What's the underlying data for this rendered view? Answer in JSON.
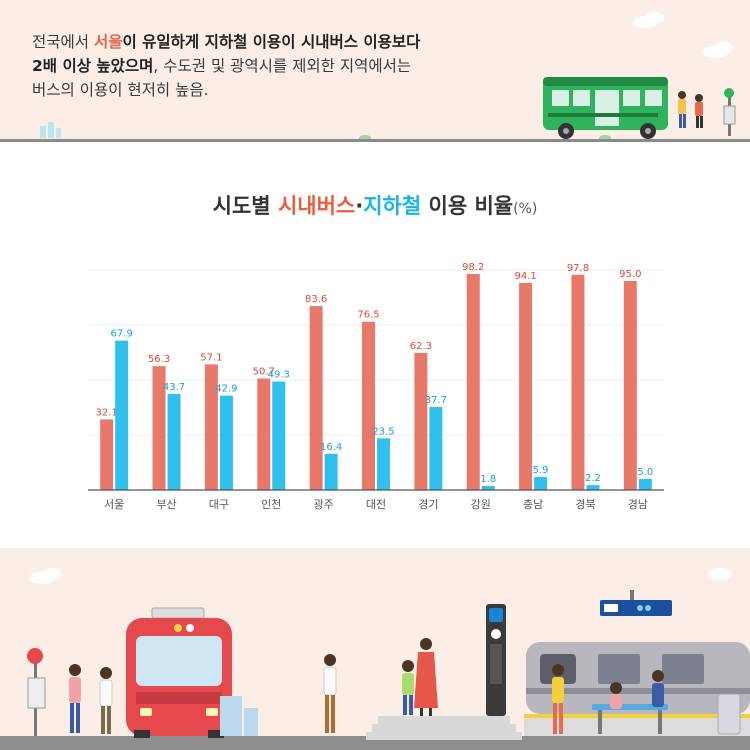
{
  "headline": {
    "line1_pre": "전국에서 ",
    "line1_city": "서울",
    "line1_post": "이 유일하게 지하철 이용이 시내버스 이용보다",
    "line2_em": "2배 이상 높았으며",
    "line2_post": ", 수도권 및 광역시를 제외한 지역에서는",
    "line3": "버스의 이용이 현저히 높음."
  },
  "chart_data": {
    "type": "bar",
    "title": {
      "pre": "시도별 ",
      "bus": "시내버스",
      "dot": "·",
      "subway": "지하철",
      "post": " 이용 비율",
      "unit": "(%)"
    },
    "categories": [
      "서울",
      "부산",
      "대구",
      "인천",
      "광주",
      "대전",
      "경기",
      "강원",
      "충남",
      "경북",
      "경남"
    ],
    "series": [
      {
        "key": "bus",
        "color": "#e8786a",
        "label_color": "#d94b36",
        "values": [
          32.1,
          56.3,
          57.1,
          50.7,
          83.6,
          76.5,
          62.3,
          98.2,
          94.1,
          97.8,
          95.0
        ]
      },
      {
        "key": "subway",
        "color": "#2fc0ee",
        "label_color": "#1b9fd0",
        "values": [
          67.9,
          43.7,
          42.9,
          49.3,
          16.4,
          23.5,
          37.7,
          1.8,
          5.9,
          2.2,
          5.0
        ]
      }
    ],
    "ylim": [
      0,
      100
    ],
    "grid": true,
    "legend": "none"
  },
  "colors": {
    "banner_bg": "#fbeee7",
    "bus_green": "#2fb35c",
    "bus_red": "#e5484d",
    "accent_orange": "#ef5b3d",
    "accent_blue": "#18b4e4"
  }
}
